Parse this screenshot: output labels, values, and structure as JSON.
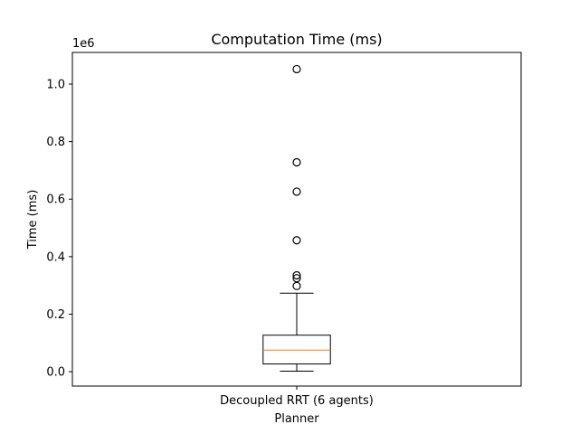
{
  "chart_data": {
    "type": "boxplot",
    "title": "Computation Time (ms)",
    "xlabel": "Planner",
    "ylabel": "Time (ms)",
    "scale_label": "1e6",
    "categories": [
      "Decoupled RRT (6 agents)"
    ],
    "ylim": [
      -0.05,
      1.11
    ],
    "yticks": [
      0.0,
      0.2,
      0.4,
      0.6,
      0.8,
      1.0
    ],
    "ytick_labels": [
      "0.0",
      "0.2",
      "0.4",
      "0.6",
      "0.8",
      "1.0"
    ],
    "grid": false,
    "series": [
      {
        "whisker_low": 0.002,
        "q1": 0.027,
        "median": 0.075,
        "q3": 0.127,
        "whisker_high": 0.273,
        "outliers": [
          0.298,
          0.325,
          0.335,
          0.457,
          0.626,
          0.728,
          1.052
        ]
      }
    ],
    "colors": {
      "box": "#000000",
      "median": "#ff7f0e",
      "outlier": "#000000"
    }
  }
}
